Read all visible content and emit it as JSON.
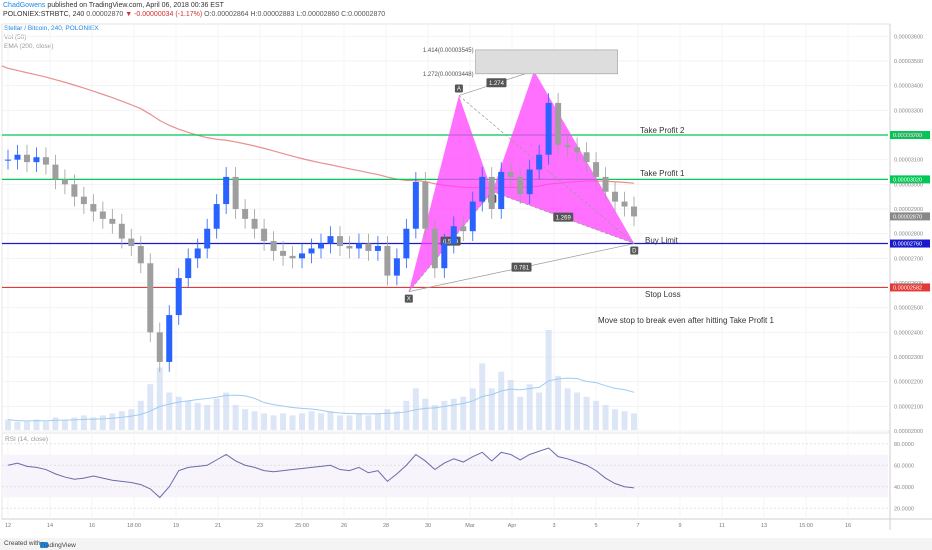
{
  "header": {
    "author": "ChadGowens",
    "published_text": "published on TradingView.com, April 06, 2018 00:36 EST",
    "symbol_line": "POLONIEX:STRBTC, 240",
    "change_text": "▼ -0.00000034 (-1.17%)",
    "ohlc_text": "O:0.00002864 H:0.00002883 L:0.00002860 C:0.00002870",
    "close_prefix": "0.00002870"
  },
  "legend": {
    "title": "Stellar / Bitcoin, 240, POLONIEX",
    "vol": "Vol (50)",
    "ema": "EMA (200, close)"
  },
  "rsi_label": "RSI (14, close)",
  "footer": {
    "created_with": "Created with",
    "brand": "TradingView"
  },
  "annotations": {
    "take_profit_2": "Take Profit 2",
    "take_profit_1": "Take Profit 1",
    "buy_limit": "Buy Limit",
    "stop_loss": "Stop Loss",
    "note": "Move stop to break even after hitting Take Profit 1"
  },
  "price_axis": {
    "ticks": [
      "0.00003600",
      "0.00003500",
      "0.00003400",
      "0.00003300",
      "0.00003200",
      "0.00003100",
      "0.00003000",
      "0.00002900",
      "0.00002800",
      "0.00002700",
      "0.00002600",
      "0.00002500",
      "0.00002400",
      "0.00002300",
      "0.00002200",
      "0.00002100",
      "0.00002000"
    ],
    "badges": [
      {
        "text": "0.00003200",
        "color": "#00c853"
      },
      {
        "text": "0.00003020",
        "color": "#00c853"
      },
      {
        "text": "0.00002870",
        "color": "#888888"
      },
      {
        "text": "0.00002760",
        "color": "#1a1acc"
      },
      {
        "text": "0.00002582",
        "color": "#e53935"
      }
    ]
  },
  "rsi_axis": {
    "ticks": [
      "80.0000",
      "60.0000",
      "40.0000",
      "20.0000"
    ]
  },
  "time_axis": {
    "ticks": [
      "12",
      "14",
      "16",
      "18:00",
      "19",
      "21",
      "23",
      "25:00",
      "26",
      "28",
      "30",
      "Mar",
      "Apr",
      "3",
      "5",
      "7",
      "9",
      "11",
      "13",
      "15:00",
      "16"
    ]
  },
  "pattern": {
    "points": {
      "X": "X",
      "A": "A",
      "B": "B",
      "C": "C",
      "D": "D"
    },
    "ratios": {
      "xb": "0.509",
      "ac": "1.274",
      "bd": "1.269",
      "xd": "0.781"
    },
    "fib_levels": [
      "1.414(0.00003545)",
      "1.272(0.00003448)"
    ]
  },
  "colors": {
    "bull": "#2962ff",
    "bear": "#9e9e9e",
    "ema": "#e57373",
    "tp": "#00c853",
    "buy": "#1a1acc",
    "stop": "#e53935",
    "pattern": "#ff40ff"
  },
  "chart_data": {
    "type": "candlestick",
    "title": "Stellar / Bitcoin, 240, POLONIEX",
    "ylim": [
      2e-05,
      3.65e-05
    ],
    "levels": [
      {
        "name": "Take Profit 2",
        "value": 3.2e-05
      },
      {
        "name": "Take Profit 1",
        "value": 3.02e-05
      },
      {
        "name": "Buy Limit",
        "value": 2.76e-05
      },
      {
        "name": "Stop Loss",
        "value": 2.582e-05
      }
    ],
    "close_series": [
      3.1e-05,
      3.12e-05,
      3.09e-05,
      3.11e-05,
      3.08e-05,
      3.02e-05,
      3e-05,
      2.95e-05,
      2.92e-05,
      2.89e-05,
      2.86e-05,
      2.84e-05,
      2.78e-05,
      2.75e-05,
      2.68e-05,
      2.4e-05,
      2.28e-05,
      2.47e-05,
      2.62e-05,
      2.7e-05,
      2.74e-05,
      2.82e-05,
      2.92e-05,
      3.03e-05,
      2.9e-05,
      2.86e-05,
      2.82e-05,
      2.77e-05,
      2.73e-05,
      2.71e-05,
      2.7e-05,
      2.72e-05,
      2.74e-05,
      2.76e-05,
      2.79e-05,
      2.75e-05,
      2.74e-05,
      2.76e-05,
      2.73e-05,
      2.75e-05,
      2.63e-05,
      2.7e-05,
      2.82e-05,
      3.01e-05,
      2.82e-05,
      2.66e-05,
      2.76e-05,
      2.83e-05,
      2.81e-05,
      2.93e-05,
      3.03e-05,
      2.9e-05,
      3.05e-05,
      3.03e-05,
      2.96e-05,
      3.06e-05,
      3.12e-05,
      3.33e-05,
      3.16e-05,
      3.15e-05,
      3.13e-05,
      3.09e-05,
      3.03e-05,
      2.97e-05,
      2.93e-05,
      2.91e-05,
      2.87e-05
    ],
    "rsi_series": [
      60,
      62,
      59,
      58,
      56,
      52,
      49,
      47,
      48,
      50,
      48,
      46,
      45,
      44,
      42,
      38,
      30,
      40,
      55,
      58,
      59,
      60,
      65,
      70,
      64,
      60,
      58,
      55,
      54,
      55,
      56,
      57,
      58,
      59,
      60,
      56,
      55,
      58,
      53,
      55,
      45,
      52,
      60,
      70,
      64,
      56,
      62,
      66,
      63,
      68,
      72,
      64,
      72,
      70,
      65,
      70,
      73,
      76,
      68,
      66,
      63,
      60,
      55,
      48,
      43,
      40,
      39
    ],
    "volume_series": [
      5,
      4,
      4,
      5,
      4,
      6,
      5,
      6,
      7,
      6,
      7,
      8,
      9,
      10,
      14,
      22,
      30,
      18,
      16,
      14,
      13,
      12,
      15,
      18,
      12,
      10,
      9,
      8,
      7,
      8,
      7,
      8,
      9,
      8,
      9,
      7,
      7,
      8,
      7,
      8,
      10,
      9,
      14,
      20,
      15,
      12,
      14,
      15,
      16,
      20,
      32,
      20,
      28,
      24,
      16,
      22,
      18,
      48,
      26,
      20,
      18,
      16,
      14,
      12,
      10,
      9,
      8
    ],
    "rsi_ylim": [
      10,
      90
    ]
  }
}
